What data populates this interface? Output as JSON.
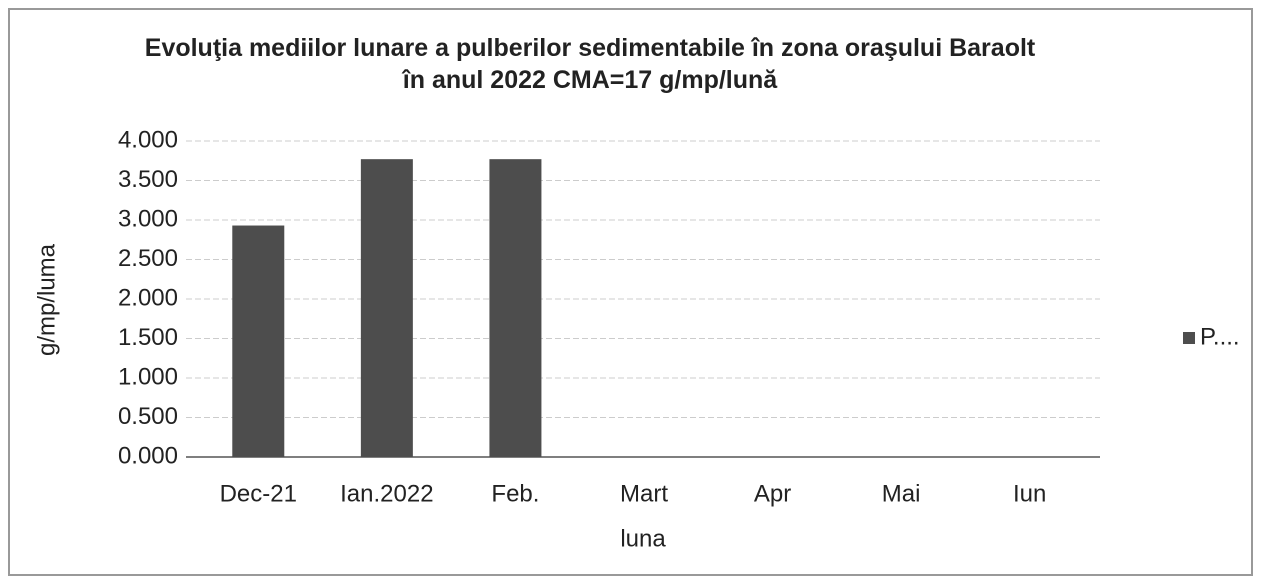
{
  "chart_data": {
    "type": "bar",
    "title": "Evoluţia mediilor lunare a pulberilor sedimentabile în zona oraşului Baraolt în anul 2022 CMA=17 g/mp/lună",
    "categories": [
      "Dec-21",
      "Ian.2022",
      "Feb.",
      "Mart",
      "Apr",
      "Mai",
      "Iun"
    ],
    "series": [
      {
        "name": "P....",
        "color": "#4d4d4d",
        "values": [
          2.93,
          3.77,
          3.77,
          null,
          null,
          null,
          null
        ]
      }
    ],
    "x_label": "luna",
    "y_label": "g/mp/luma",
    "ylim": [
      0,
      4
    ],
    "yticks": [
      {
        "value": 0,
        "label": "0.000"
      },
      {
        "value": 0.5,
        "label": "0.500"
      },
      {
        "value": 1,
        "label": "1.000"
      },
      {
        "value": 1.5,
        "label": "1.500"
      },
      {
        "value": 2,
        "label": "2.000"
      },
      {
        "value": 2.5,
        "label": "2.500"
      },
      {
        "value": 3,
        "label": "3.000"
      },
      {
        "value": 3.5,
        "label": "3.500"
      },
      {
        "value": 4,
        "label": "4.000"
      }
    ],
    "grid": true,
    "legend": "right"
  }
}
